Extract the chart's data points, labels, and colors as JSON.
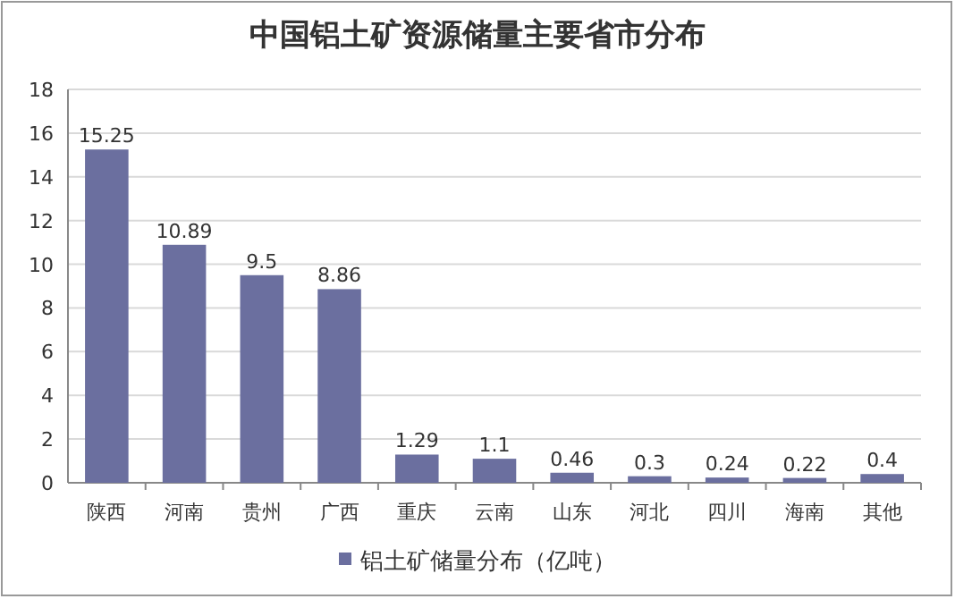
{
  "chart_data": {
    "type": "bar",
    "title": "中国铝土矿资源储量主要省市分布",
    "categories": [
      "陕西",
      "河南",
      "贵州",
      "广西",
      "重庆",
      "云南",
      "山东",
      "河北",
      "四川",
      "海南",
      "其他"
    ],
    "series": [
      {
        "name": "铝土矿储量分布（亿吨）",
        "color": "#6b6f9f",
        "values": [
          15.25,
          10.89,
          9.5,
          8.86,
          1.29,
          1.1,
          0.46,
          0.3,
          0.24,
          0.22,
          0.4
        ]
      }
    ],
    "ylim": [
      0,
      18
    ],
    "yticks": [
      0,
      2,
      4,
      6,
      8,
      10,
      12,
      14,
      16,
      18
    ],
    "grid": "y",
    "legend": "bottom",
    "data_labels": true
  }
}
